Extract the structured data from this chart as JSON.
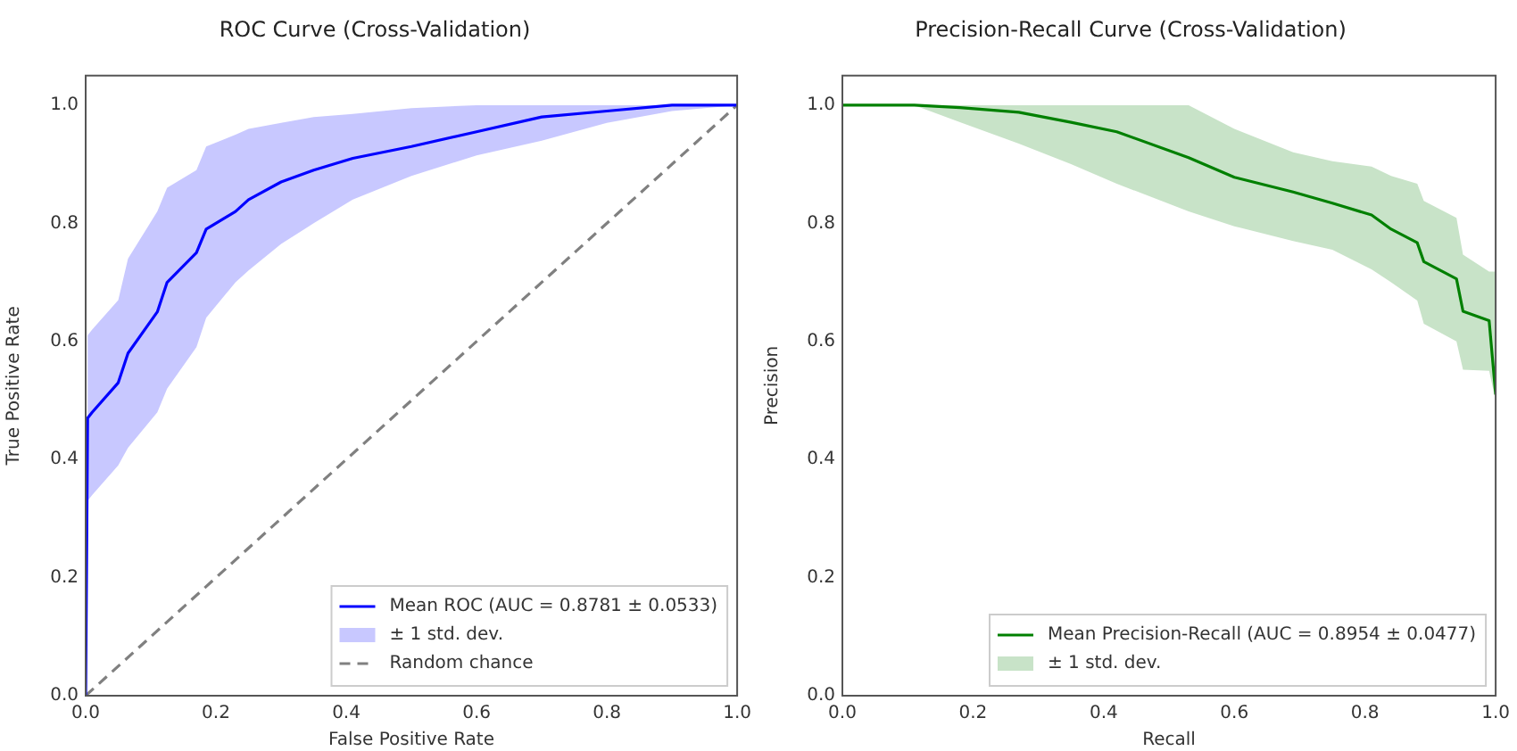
{
  "chart_data": [
    {
      "type": "line",
      "title": "ROC Curve (Cross-Validation)",
      "xlabel": "False Positive Rate",
      "ylabel": "True Positive Rate",
      "xlim": [
        0,
        1
      ],
      "ylim": [
        0,
        1.05
      ],
      "xticks": [
        {
          "value": 0,
          "label": "0.0"
        },
        {
          "value": 0.2,
          "label": "0.2"
        },
        {
          "value": 0.4,
          "label": "0.4"
        },
        {
          "value": 0.6,
          "label": "0.6"
        },
        {
          "value": 0.8,
          "label": "0.8"
        },
        {
          "value": 1,
          "label": "1.0"
        }
      ],
      "yticks": [
        {
          "value": 0,
          "label": "0.0"
        },
        {
          "value": 0.2,
          "label": "0.2"
        },
        {
          "value": 0.4,
          "label": "0.4"
        },
        {
          "value": 0.6,
          "label": "0.6"
        },
        {
          "value": 0.8,
          "label": "0.8"
        },
        {
          "value": 1,
          "label": "1.0"
        }
      ],
      "legend": "bottom right",
      "marker": "none",
      "grid": false,
      "series": [
        {
          "name": "Mean ROC (AUC = 0.8781 ± 0.0533)",
          "color": "#0000ff",
          "line_style": "solid",
          "x": [
            0,
            0.003,
            0.01,
            0.05,
            0.065,
            0.11,
            0.125,
            0.17,
            0.185,
            0.23,
            0.25,
            0.3,
            0.35,
            0.41,
            0.5,
            0.6,
            0.7,
            0.8,
            0.9,
            1.0
          ],
          "values": [
            0,
            0.47,
            0.48,
            0.53,
            0.58,
            0.65,
            0.7,
            0.75,
            0.79,
            0.82,
            0.84,
            0.87,
            0.89,
            0.91,
            0.93,
            0.955,
            0.98,
            0.99,
            1.0,
            1.0
          ]
        },
        {
          "name": "± 1 std. dev.",
          "type": "area",
          "color": "#c8c8ff",
          "values": [
            null,
            null,
            null,
            null,
            null,
            null,
            null,
            null,
            null,
            null,
            null,
            null,
            null,
            null,
            null,
            null,
            null,
            null,
            null
          ],
          "x": [
            0.003,
            0.01,
            0.05,
            0.065,
            0.11,
            0.125,
            0.17,
            0.185,
            0.23,
            0.25,
            0.3,
            0.35,
            0.41,
            0.5,
            0.6,
            0.7,
            0.8,
            0.9,
            1.0
          ],
          "lower": [
            0.33,
            0.34,
            0.39,
            0.42,
            0.48,
            0.52,
            0.59,
            0.64,
            0.7,
            0.72,
            0.765,
            0.8,
            0.84,
            0.88,
            0.915,
            0.94,
            0.97,
            0.99,
            1.0
          ],
          "upper": [
            0.61,
            0.62,
            0.67,
            0.74,
            0.82,
            0.86,
            0.89,
            0.93,
            0.95,
            0.96,
            0.97,
            0.98,
            0.985,
            0.995,
            1.0,
            1.0,
            1.0,
            1.0,
            1.0
          ]
        },
        {
          "name": "Random chance",
          "color": "#808080",
          "line_style": "dashed",
          "x": [
            0,
            1
          ],
          "values": [
            0,
            1
          ]
        }
      ]
    },
    {
      "type": "line",
      "title": "Precision-Recall Curve (Cross-Validation)",
      "xlabel": "Recall",
      "ylabel": "Precision",
      "xlim": [
        0,
        1
      ],
      "ylim": [
        0,
        1.05
      ],
      "xticks": [
        {
          "value": 0,
          "label": "0.0"
        },
        {
          "value": 0.2,
          "label": "0.2"
        },
        {
          "value": 0.4,
          "label": "0.4"
        },
        {
          "value": 0.6,
          "label": "0.6"
        },
        {
          "value": 0.8,
          "label": "0.8"
        },
        {
          "value": 1,
          "label": "1.0"
        }
      ],
      "yticks": [
        {
          "value": 0,
          "label": "0.0"
        },
        {
          "value": 0.2,
          "label": "0.2"
        },
        {
          "value": 0.4,
          "label": "0.4"
        },
        {
          "value": 0.6,
          "label": "0.6"
        },
        {
          "value": 0.8,
          "label": "0.8"
        },
        {
          "value": 1,
          "label": "1.0"
        }
      ],
      "legend": "bottom right",
      "marker": "none",
      "grid": false,
      "series": [
        {
          "name": "Mean Precision-Recall (AUC = 0.8954 ± 0.0477)",
          "color": "#008000",
          "line_style": "solid",
          "x": [
            0,
            0.11,
            0.18,
            0.27,
            0.35,
            0.42,
            0.53,
            0.6,
            0.69,
            0.75,
            0.81,
            0.84,
            0.88,
            0.89,
            0.94,
            0.95,
            0.99,
            1.0
          ],
          "values": [
            1.0,
            1.0,
            0.996,
            0.988,
            0.971,
            0.955,
            0.911,
            0.878,
            0.853,
            0.834,
            0.814,
            0.79,
            0.767,
            0.735,
            0.706,
            0.651,
            0.635,
            0.51
          ]
        },
        {
          "name": "± 1 std. dev.",
          "type": "area",
          "color": "#c8e3c8",
          "values": [
            null,
            null,
            null,
            null,
            null,
            null,
            null,
            null,
            null,
            null,
            null,
            null,
            null,
            null,
            null,
            null,
            null,
            null
          ],
          "x": [
            0,
            0.11,
            0.18,
            0.27,
            0.35,
            0.42,
            0.53,
            0.6,
            0.69,
            0.75,
            0.81,
            0.84,
            0.88,
            0.89,
            0.94,
            0.95,
            0.99,
            1.0
          ],
          "lower": [
            1.0,
            1.0,
            0.971,
            0.935,
            0.9,
            0.867,
            0.82,
            0.795,
            0.77,
            0.755,
            0.722,
            0.7,
            0.669,
            0.63,
            0.6,
            0.552,
            0.55,
            0.5
          ],
          "upper": [
            1.0,
            1.0,
            1.0,
            1.0,
            1.0,
            1.0,
            1.0,
            0.96,
            0.92,
            0.905,
            0.896,
            0.88,
            0.867,
            0.838,
            0.809,
            0.747,
            0.718,
            0.718
          ]
        }
      ]
    }
  ]
}
